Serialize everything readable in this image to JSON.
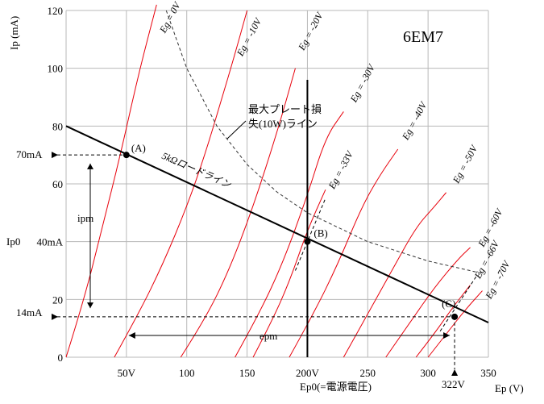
{
  "chart_data": {
    "type": "line",
    "title": "6EM7",
    "xlabel": "Ep (V)",
    "ylabel": "Ip (mA)",
    "xlim": [
      0,
      350
    ],
    "ylim": [
      0,
      120
    ],
    "x_ticks": [
      {
        "value": 50,
        "label": "50V"
      },
      {
        "value": 100,
        "label": "100"
      },
      {
        "value": 150,
        "label": "150"
      },
      {
        "value": 200,
        "label": "200V"
      },
      {
        "value": 250,
        "label": "250"
      },
      {
        "value": 300,
        "label": "300"
      },
      {
        "value": 350,
        "label": "350"
      }
    ],
    "y_ticks": [
      {
        "value": 0,
        "label": "0"
      },
      {
        "value": 20,
        "label": "20"
      },
      {
        "value": 40,
        "label": "40mA"
      },
      {
        "value": 60,
        "label": "60"
      },
      {
        "value": 80,
        "label": "80"
      },
      {
        "value": 100,
        "label": "100"
      },
      {
        "value": 120,
        "label": "120"
      }
    ],
    "grid": true,
    "series": [
      {
        "name": "Eg = 0V",
        "x": [
          0,
          15,
          30,
          45,
          60,
          75
        ],
        "y": [
          0,
          20,
          45,
          70,
          98,
          122
        ],
        "label_at": [
          82,
          112
        ]
      },
      {
        "name": "Eg = -10V",
        "x": [
          40,
          60,
          80,
          100,
          115,
          128,
          140,
          150
        ],
        "y": [
          0,
          15,
          32,
          52,
          70,
          88,
          105,
          120
        ],
        "label_at": [
          146,
          104
        ]
      },
      {
        "name": "Eg = -20V",
        "x": [
          95,
          115,
          135,
          155,
          175,
          190
        ],
        "y": [
          0,
          13,
          30,
          52,
          78,
          100
        ],
        "label_at": [
          197,
          106
        ]
      },
      {
        "name": "Eg = -30V",
        "x": [
          140,
          160,
          180,
          200,
          215,
          230
        ],
        "y": [
          0,
          15,
          33,
          56,
          76,
          85
        ],
        "label_at": [
          240,
          88
        ]
      },
      {
        "name": "Eg = -33V",
        "x": [
          155,
          170,
          185,
          200,
          215
        ],
        "y": [
          0,
          12,
          26,
          44,
          58
        ],
        "label_at": [
          222,
          58
        ]
      },
      {
        "name": "Eg = -40V",
        "x": [
          185,
          205,
          225,
          245,
          260,
          275
        ],
        "y": [
          0,
          15,
          32,
          52,
          63,
          72
        ],
        "label_at": [
          283,
          75
        ]
      },
      {
        "name": "Eg = -50V",
        "x": [
          230,
          250,
          270,
          290,
          305,
          315
        ],
        "y": [
          0,
          15,
          30,
          45,
          52,
          57
        ],
        "label_at": [
          325,
          60
        ]
      },
      {
        "name": "Eg = -60V",
        "x": [
          265,
          285,
          305,
          325,
          335
        ],
        "y": [
          0,
          12,
          24,
          34,
          38
        ],
        "label_at": [
          346,
          38
        ]
      },
      {
        "name": "Eg = -66V",
        "x": [
          290,
          305,
          320,
          335
        ],
        "y": [
          0,
          8,
          17,
          25
        ],
        "label_at": [
          343,
          27
        ]
      },
      {
        "name": "Eg = -70V",
        "x": [
          300,
          315,
          330,
          345
        ],
        "y": [
          0,
          8,
          16,
          23
        ],
        "label_at": [
          352,
          20
        ]
      }
    ],
    "load_line": {
      "name": "5kΩロードライン",
      "x": [
        0,
        350
      ],
      "y": [
        80,
        12
      ],
      "label_at": [
        80,
        66
      ]
    },
    "max_dissipation": {
      "name": "最大プレート損失(10W)ライン",
      "label_line1": "最大プレート損",
      "label_line2": "失(10W)ライン",
      "x": [
        83,
        100,
        125,
        150,
        175,
        200,
        250,
        300,
        345
      ],
      "y": [
        120,
        100,
        80,
        66.7,
        57.1,
        50,
        40,
        33.3,
        29
      ]
    },
    "ep0_line": {
      "x": 200,
      "label": "Ep0(=電源電圧)"
    },
    "points": [
      {
        "label": "(A)",
        "x": 50,
        "y": 70
      },
      {
        "label": "(B)",
        "x": 200,
        "y": 40
      },
      {
        "label": "(C)",
        "x": 322,
        "y": 14
      }
    ],
    "annotations": {
      "y_70": "70mA",
      "y_40": "Ip0",
      "y_14": "14mA",
      "ipm": "ipm",
      "epm": "epm",
      "x_322": "322V"
    },
    "colors": {
      "curves": "#e8000b",
      "lines": "#000000",
      "grid": "#b8b8b8"
    }
  }
}
